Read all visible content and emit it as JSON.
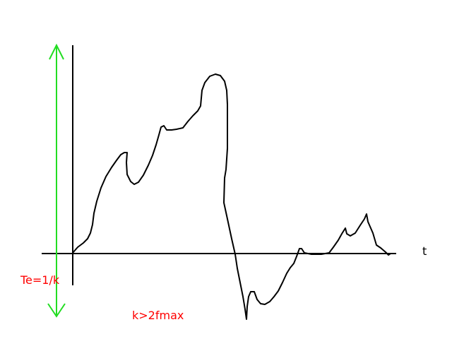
{
  "diagram": {
    "axis_label_t": "t",
    "label_te": "Te=1/k",
    "label_condition": "k>2fmax",
    "colors": {
      "axes": "#000000",
      "signal": "#000000",
      "arrow": "#22dd22",
      "annotation": "#ff0000"
    }
  }
}
